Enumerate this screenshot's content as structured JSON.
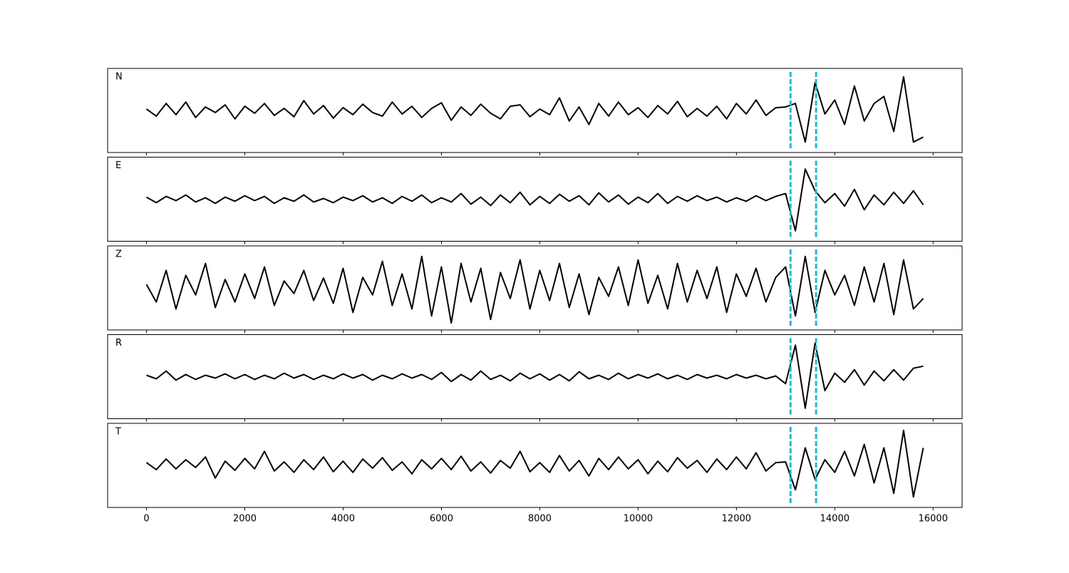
{
  "chart_data": {
    "type": "line",
    "x": [
      0,
      200,
      400,
      600,
      800,
      1000,
      1200,
      1400,
      1600,
      1800,
      2000,
      2200,
      2400,
      2600,
      2800,
      3000,
      3200,
      3400,
      3600,
      3800,
      4000,
      4200,
      4400,
      4600,
      4800,
      5000,
      5200,
      5400,
      5600,
      5800,
      6000,
      6200,
      6400,
      6600,
      6800,
      7000,
      7200,
      7400,
      7600,
      7800,
      8000,
      8200,
      8400,
      8600,
      8800,
      9000,
      9200,
      9400,
      9600,
      9800,
      10000,
      10200,
      10400,
      10600,
      10800,
      11000,
      11200,
      11400,
      11600,
      11800,
      12000,
      12200,
      12400,
      12600,
      12800,
      13000,
      13200,
      13400,
      13600,
      13800,
      14000,
      14200,
      14400,
      14600,
      14800,
      15000,
      15200,
      15400,
      15600,
      15800
    ],
    "xlim": [
      -790,
      16590
    ],
    "xticks": [
      0,
      2000,
      4000,
      6000,
      8000,
      10000,
      12000,
      14000,
      16000
    ],
    "ylim": [
      -60,
      60
    ],
    "vlines": [
      13100,
      13620
    ],
    "vline_color": "#17becf",
    "series": [
      {
        "name": "N",
        "color": "#000000",
        "values": [
          2,
          -8,
          10,
          -6,
          12,
          -10,
          5,
          -3,
          8,
          -12,
          6,
          -4,
          10,
          -7,
          3,
          -9,
          14,
          -5,
          7,
          -11,
          4,
          -6,
          9,
          -3,
          -8,
          12,
          -5,
          6,
          -10,
          3,
          11,
          -14,
          5,
          -7,
          9,
          -4,
          -12,
          6,
          8,
          -9,
          2,
          -6,
          18,
          -15,
          5,
          -20,
          10,
          -8,
          12,
          -6,
          4,
          -10,
          7,
          -5,
          13,
          -9,
          3,
          -8,
          6,
          -12,
          10,
          -5,
          15,
          -7,
          4,
          5,
          10,
          -45,
          40,
          -5,
          15,
          -20,
          35,
          -15,
          10,
          20,
          -30,
          48,
          -45,
          -38
        ]
      },
      {
        "name": "E",
        "color": "#000000",
        "values": [
          3,
          -5,
          4,
          -2,
          6,
          -4,
          2,
          -6,
          3,
          -3,
          5,
          -2,
          4,
          -6,
          2,
          -3,
          6,
          -4,
          1,
          -5,
          3,
          -2,
          5,
          -4,
          2,
          -6,
          4,
          -3,
          6,
          -5,
          2,
          -4,
          8,
          -7,
          3,
          -9,
          6,
          -5,
          10,
          -8,
          4,
          -6,
          7,
          -3,
          5,
          -8,
          9,
          -4,
          6,
          -7,
          3,
          -5,
          8,
          -6,
          4,
          -3,
          5,
          -2,
          3,
          -4,
          2,
          -3,
          5,
          -2,
          4,
          8,
          -45,
          43,
          12,
          -5,
          8,
          -10,
          14,
          -15,
          6,
          -8,
          10,
          -6,
          12,
          -8
        ]
      },
      {
        "name": "Z",
        "color": "#000000",
        "values": [
          5,
          -20,
          25,
          -30,
          18,
          -10,
          35,
          -28,
          12,
          -20,
          20,
          -15,
          30,
          -25,
          10,
          -8,
          25,
          -18,
          14,
          -22,
          28,
          -35,
          15,
          -10,
          38,
          -25,
          20,
          -30,
          45,
          -40,
          30,
          -50,
          35,
          -20,
          28,
          -45,
          22,
          -15,
          40,
          -30,
          25,
          -18,
          35,
          -28,
          20,
          -38,
          15,
          -12,
          30,
          -25,
          40,
          -22,
          18,
          -30,
          35,
          -20,
          25,
          -15,
          30,
          -35,
          20,
          -12,
          28,
          -20,
          15,
          30,
          -40,
          45,
          -35,
          25,
          -10,
          18,
          -25,
          30,
          -20,
          35,
          -38,
          40,
          -30,
          -15
        ]
      },
      {
        "name": "R",
        "color": "#000000",
        "values": [
          2,
          -3,
          8,
          -5,
          3,
          -4,
          2,
          -2,
          4,
          -3,
          3,
          -4,
          2,
          -3,
          5,
          -2,
          3,
          -4,
          2,
          -3,
          4,
          -2,
          3,
          -5,
          2,
          -3,
          4,
          -2,
          3,
          -4,
          6,
          -7,
          3,
          -5,
          8,
          -4,
          2,
          -6,
          5,
          -3,
          4,
          -5,
          3,
          -6,
          7,
          -3,
          2,
          -4,
          5,
          -3,
          3,
          -2,
          4,
          -3,
          2,
          -4,
          3,
          -2,
          2,
          -3,
          3,
          -2,
          2,
          -3,
          1,
          -10,
          45,
          -45,
          48,
          -20,
          5,
          -8,
          10,
          -12,
          8,
          -6,
          10,
          -5,
          12,
          15
        ]
      },
      {
        "name": "T",
        "color": "#000000",
        "values": [
          4,
          -6,
          9,
          -5,
          8,
          -3,
          12,
          -18,
          6,
          -7,
          10,
          -5,
          20,
          -8,
          5,
          -10,
          8,
          -6,
          12,
          -9,
          6,
          -10,
          9,
          -4,
          11,
          -7,
          5,
          -12,
          8,
          -5,
          10,
          -6,
          13,
          -8,
          5,
          -11,
          7,
          -4,
          20,
          -9,
          4,
          -10,
          14,
          -8,
          7,
          -15,
          10,
          -6,
          12,
          -5,
          8,
          -12,
          6,
          -9,
          11,
          -4,
          7,
          -10,
          9,
          -6,
          12,
          -5,
          18,
          -8,
          4,
          5,
          -35,
          25,
          -20,
          8,
          -10,
          20,
          -15,
          30,
          -25,
          25,
          -40,
          50,
          -45,
          25
        ]
      }
    ]
  }
}
